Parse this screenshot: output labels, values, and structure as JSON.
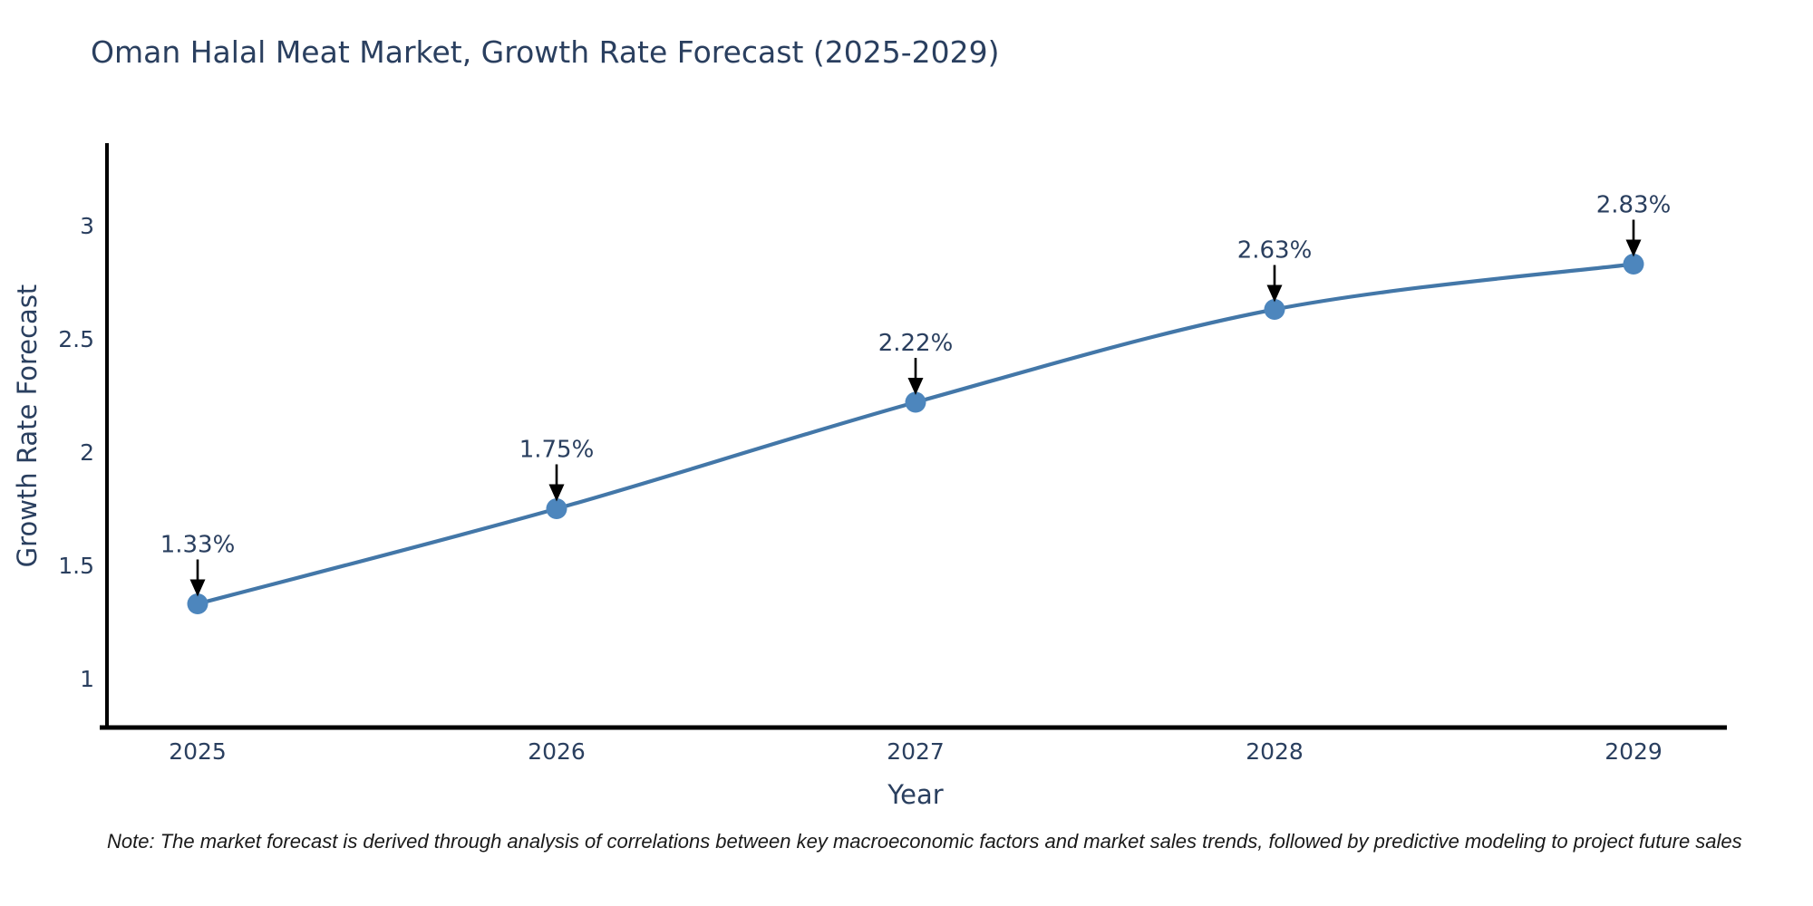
{
  "note": "Note: The market forecast is derived through analysis of correlations between key macroeconomic factors and market sales trends, followed by predictive modeling to project future sales",
  "chart_data": {
    "type": "line",
    "title": "Oman Halal Meat Market, Growth Rate Forecast (2025-2029)",
    "x": [
      2025,
      2026,
      2027,
      2028,
      2029
    ],
    "y": [
      1.33,
      1.75,
      2.22,
      2.63,
      2.83
    ],
    "point_labels": [
      "1.33%",
      "1.75%",
      "2.22%",
      "2.63%",
      "2.83%"
    ],
    "xlabel": "Year",
    "ylabel": "Growth Rate Forecast",
    "xticklabels": [
      "2025",
      "2026",
      "2027",
      "2028",
      "2029"
    ],
    "yticks": [
      1,
      1.5,
      2,
      2.5,
      3
    ],
    "yticklabels": [
      "1",
      "1.5",
      "2",
      "2.5",
      "3"
    ],
    "ylim": [
      0.78,
      3.34
    ],
    "grid": false,
    "legend": "none",
    "line_shape": "spline",
    "annotation_style": "down-arrow-to-point",
    "colors": {
      "line": "#4377a8",
      "marker": "#4d86bd",
      "axis": "#000000",
      "tick_text": "#2a3f5f",
      "title_text": "#2a3f5f",
      "annotation_text": "#2a3f5f",
      "arrow": "#000000",
      "note_text": "#1a1a1a"
    }
  }
}
